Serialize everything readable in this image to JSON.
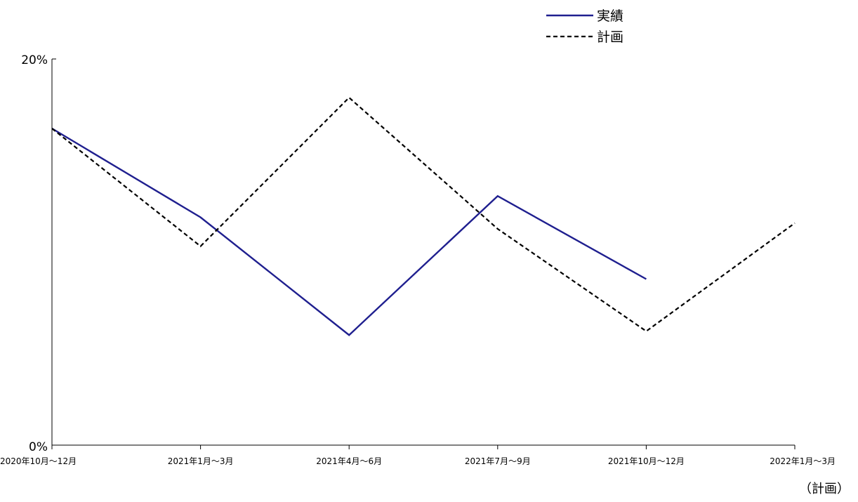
{
  "chart_data": {
    "type": "line",
    "categories": [
      "2020年10月～12月",
      "2021年1月～3月",
      "2021年4月～6月",
      "2021年7月～9月",
      "2021年10月～12月",
      "2022年1月～3月"
    ],
    "series": [
      {
        "name": "実績",
        "values": [
          16.4,
          11.8,
          5.7,
          12.9,
          8.6,
          null
        ],
        "color": "#1f1f8f",
        "style": "solid"
      },
      {
        "name": "計画",
        "values": [
          16.4,
          10.3,
          18.0,
          11.2,
          5.9,
          11.5
        ],
        "color": "#000000",
        "style": "dashed"
      }
    ],
    "y_ticks": [
      "0%",
      "20%"
    ],
    "ylim": [
      0,
      20
    ],
    "grid": false,
    "legend_position": "top-right",
    "footnote": "（計画）"
  }
}
